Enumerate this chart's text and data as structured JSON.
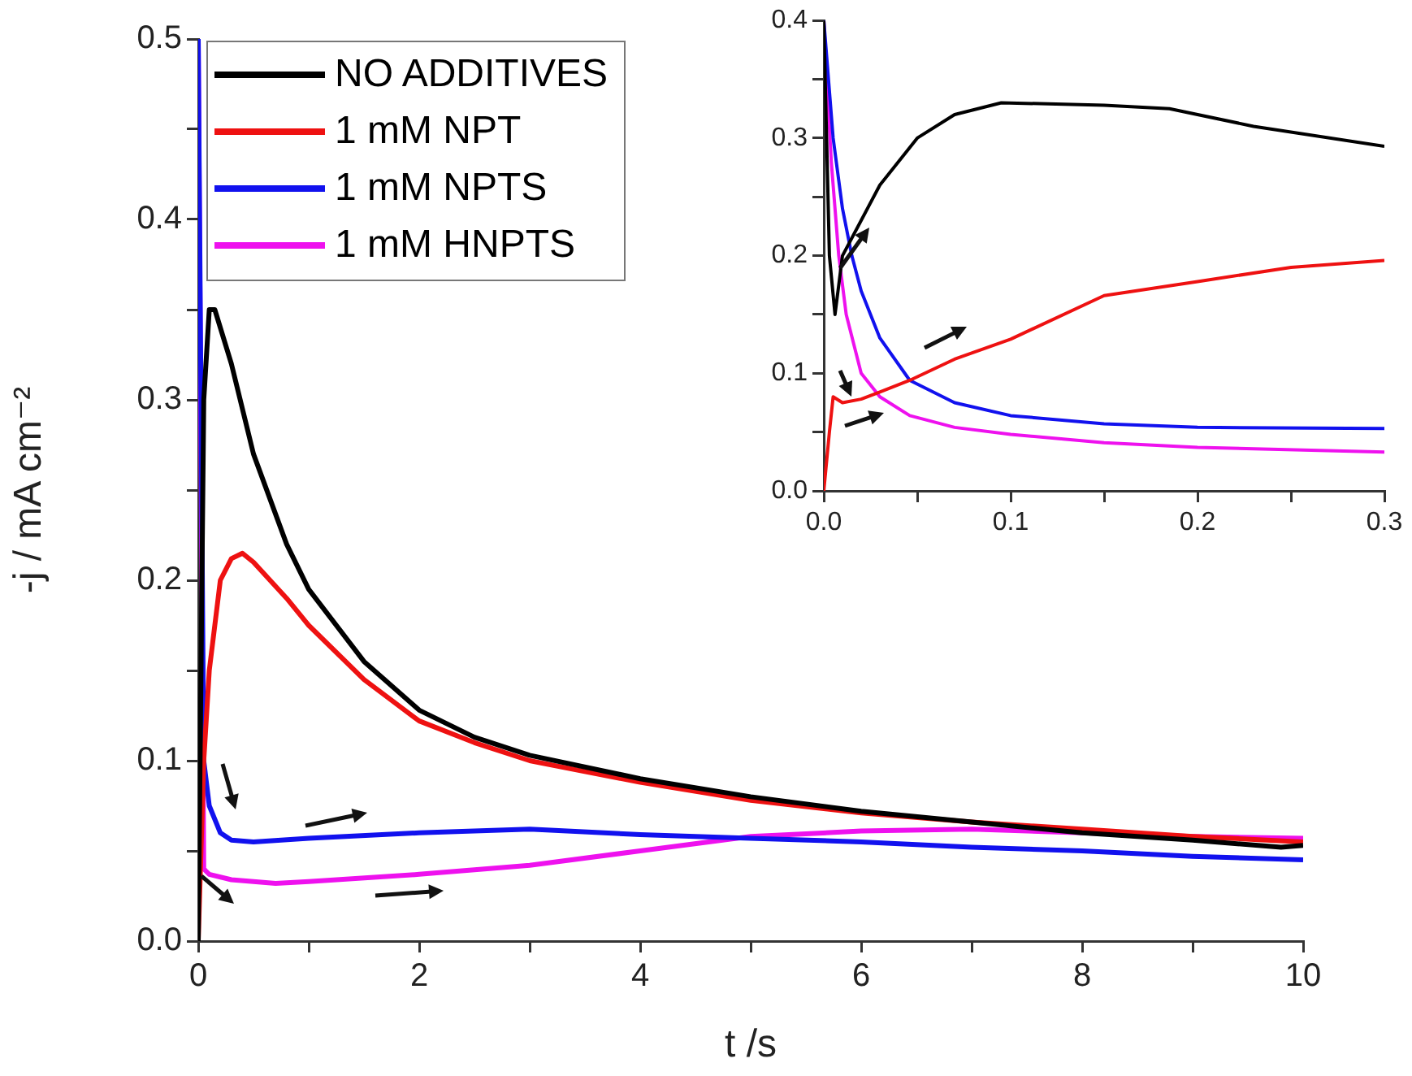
{
  "chart_data": [
    {
      "type": "line",
      "xlabel": "t /s",
      "ylabel": "-j / mA cm⁻²",
      "xlim": [
        0,
        10
      ],
      "ylim": [
        0,
        0.5
      ],
      "xticks": [
        0,
        {
          "value": 1,
          "label": null
        },
        2,
        {
          "value": 3,
          "label": null
        },
        4,
        {
          "value": 5,
          "label": null
        },
        6,
        {
          "value": 7,
          "label": null
        },
        8,
        {
          "value": 9,
          "label": null
        },
        10
      ],
      "yticks": [
        {
          "value": 0,
          "label": "0.0"
        },
        {
          "value": 0.05,
          "label": null
        },
        {
          "value": 0.1,
          "label": "0.1"
        },
        {
          "value": 0.15,
          "label": null
        },
        {
          "value": 0.2,
          "label": "0.2"
        },
        {
          "value": 0.25,
          "label": null
        },
        {
          "value": 0.3,
          "label": "0.3"
        },
        {
          "value": 0.35,
          "label": null
        },
        {
          "value": 0.4,
          "label": "0.4"
        },
        {
          "value": 0.45,
          "label": null
        },
        {
          "value": 0.5,
          "label": "0.5"
        }
      ],
      "grid": false,
      "legend": "top left",
      "marker": "none",
      "line_style": "solid",
      "series": [
        {
          "name": "NO ADDITIVES",
          "color": "#000000",
          "x": [
            0,
            0.05,
            0.1,
            0.15,
            0.3,
            0.5,
            0.8,
            1,
            1.5,
            2,
            2.5,
            3,
            4,
            5,
            6,
            7,
            8,
            9,
            9.8,
            10
          ],
          "values": [
            0,
            0.3,
            0.35,
            0.35,
            0.32,
            0.27,
            0.22,
            0.195,
            0.155,
            0.128,
            0.113,
            0.103,
            0.09,
            0.08,
            0.072,
            0.066,
            0.06,
            0.056,
            0.052,
            0.053
          ]
        },
        {
          "name": "1 mM NPT",
          "color": "#ee1111",
          "x": [
            0,
            0.05,
            0.1,
            0.2,
            0.3,
            0.4,
            0.5,
            0.8,
            1,
            1.5,
            2,
            2.5,
            3,
            4,
            5,
            6,
            7,
            8,
            9,
            10
          ],
          "values": [
            0,
            0.1,
            0.15,
            0.2,
            0.212,
            0.215,
            0.21,
            0.19,
            0.175,
            0.145,
            0.122,
            0.11,
            0.1,
            0.088,
            0.078,
            0.071,
            0.066,
            0.062,
            0.058,
            0.055
          ]
        },
        {
          "name": "1 mM NPTS",
          "color": "#1111ee",
          "x": [
            0,
            0.05,
            0.1,
            0.2,
            0.3,
            0.5,
            1,
            2,
            3,
            4,
            5,
            6,
            7,
            8,
            9,
            10
          ],
          "values": [
            0.5,
            0.1,
            0.075,
            0.06,
            0.056,
            0.055,
            0.057,
            0.06,
            0.062,
            0.059,
            0.057,
            0.055,
            0.052,
            0.05,
            0.047,
            0.045
          ]
        },
        {
          "name": "1 mM HNPTS",
          "color": "#ee11ee",
          "x": [
            0,
            0.05,
            0.1,
            0.3,
            0.5,
            0.7,
            1,
            2,
            3,
            4,
            5,
            6,
            7,
            8,
            9,
            10
          ],
          "values": [
            0.5,
            0.04,
            0.037,
            0.034,
            0.033,
            0.032,
            0.033,
            0.037,
            0.042,
            0.05,
            0.058,
            0.061,
            0.062,
            0.06,
            0.058,
            0.057
          ]
        }
      ]
    },
    {
      "type": "line",
      "xlim": [
        0,
        0.3
      ],
      "ylim": [
        0,
        0.4
      ],
      "xticks": [
        {
          "value": 0,
          "label": "0.0"
        },
        {
          "value": 0.05,
          "label": null
        },
        {
          "value": 0.1,
          "label": "0.1"
        },
        {
          "value": 0.15,
          "label": null
        },
        {
          "value": 0.2,
          "label": "0.2"
        },
        {
          "value": 0.25,
          "label": null
        },
        {
          "value": 0.3,
          "label": "0.3"
        }
      ],
      "yticks": [
        {
          "value": 0,
          "label": "0.0"
        },
        {
          "value": 0.05,
          "label": null
        },
        {
          "value": 0.1,
          "label": "0.1"
        },
        {
          "value": 0.15,
          "label": null
        },
        {
          "value": 0.2,
          "label": "0.2"
        },
        {
          "value": 0.25,
          "label": null
        },
        {
          "value": 0.3,
          "label": "0.3"
        },
        {
          "value": 0.35,
          "label": null
        },
        {
          "value": 0.4,
          "label": "0.4"
        }
      ],
      "grid": false,
      "marker": "none",
      "line_style": "solid",
      "series": [
        {
          "color": "#000000",
          "x": [
            0,
            0.003,
            0.006,
            0.01,
            0.02,
            0.03,
            0.05,
            0.07,
            0.095,
            0.15,
            0.185,
            0.23,
            0.3
          ],
          "values": [
            0.4,
            0.2,
            0.15,
            0.2,
            0.23,
            0.26,
            0.3,
            0.32,
            0.33,
            0.328,
            0.325,
            0.31,
            0.293
          ]
        },
        {
          "color": "#ee1111",
          "x": [
            0,
            0.003,
            0.005,
            0.01,
            0.02,
            0.03,
            0.046,
            0.07,
            0.1,
            0.15,
            0.2,
            0.25,
            0.3
          ],
          "values": [
            0,
            0.05,
            0.08,
            0.075,
            0.078,
            0.084,
            0.094,
            0.112,
            0.129,
            0.166,
            0.178,
            0.19,
            0.196
          ]
        },
        {
          "color": "#1111ee",
          "x": [
            0,
            0.005,
            0.01,
            0.015,
            0.02,
            0.03,
            0.046,
            0.07,
            0.1,
            0.15,
            0.2,
            0.3
          ],
          "values": [
            0.4,
            0.3,
            0.24,
            0.2,
            0.17,
            0.13,
            0.094,
            0.075,
            0.064,
            0.057,
            0.054,
            0.053
          ]
        },
        {
          "color": "#ee11ee",
          "x": [
            0,
            0.004,
            0.008,
            0.012,
            0.02,
            0.03,
            0.046,
            0.07,
            0.1,
            0.15,
            0.2,
            0.3
          ],
          "values": [
            0.4,
            0.28,
            0.2,
            0.15,
            0.1,
            0.08,
            0.064,
            0.054,
            0.048,
            0.041,
            0.037,
            0.033
          ]
        }
      ]
    }
  ]
}
